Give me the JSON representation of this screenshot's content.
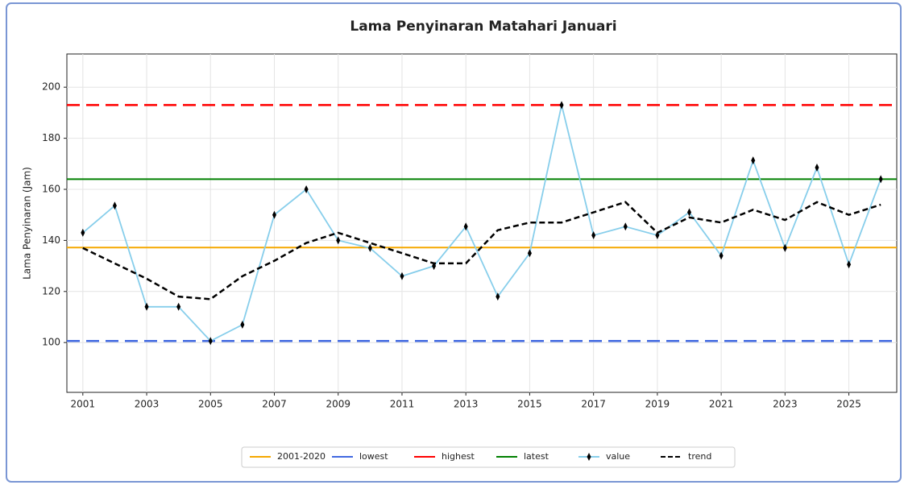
{
  "chart_data": {
    "type": "line",
    "title": "Lama Penyinaran Matahari Januari",
    "ylabel": "Lama Penyinaran (Jam)",
    "x": [
      2001,
      2002,
      2003,
      2004,
      2005,
      2006,
      2007,
      2008,
      2009,
      2010,
      2011,
      2012,
      2013,
      2014,
      2015,
      2016,
      2017,
      2018,
      2019,
      2020,
      2021,
      2022,
      2023,
      2024,
      2025,
      2026
    ],
    "series": [
      {
        "name": "value",
        "color": "#87ceeb",
        "marker": "#000000",
        "dash": false,
        "values": [
          143,
          153.6,
          114,
          114,
          100.6,
          107,
          150,
          160,
          140,
          137,
          126,
          130,
          145.4,
          118,
          135,
          193,
          142,
          145.4,
          142,
          151,
          134,
          171.3,
          137,
          168.5,
          130.6,
          164
        ]
      },
      {
        "name": "trend",
        "color": "#000000",
        "dash": true,
        "values": [
          137,
          131,
          125,
          118,
          117,
          126,
          132,
          139,
          143,
          139,
          135,
          131,
          131,
          144,
          147,
          147,
          151,
          155,
          143,
          149,
          147,
          152,
          148,
          155,
          150,
          154
        ]
      }
    ],
    "reference_lines": [
      {
        "name": "2001-2020",
        "color": "#f5a800",
        "value": 137.2,
        "dash": false
      },
      {
        "name": "lowest",
        "color": "#4169e1",
        "value": 100.6,
        "dash": true
      },
      {
        "name": "highest",
        "color": "#ff0000",
        "value": 193,
        "dash": true
      },
      {
        "name": "latest",
        "color": "#008000",
        "value": 164,
        "dash": false
      }
    ],
    "xlim": [
      2000.5,
      2026.5
    ],
    "xticks": [
      2001,
      2003,
      2005,
      2007,
      2009,
      2011,
      2013,
      2015,
      2017,
      2019,
      2021,
      2023,
      2025
    ],
    "ylim": [
      80.5,
      213
    ],
    "yticks": [
      100,
      120,
      140,
      160,
      180,
      200
    ],
    "grid": true,
    "legend": "bottom"
  }
}
